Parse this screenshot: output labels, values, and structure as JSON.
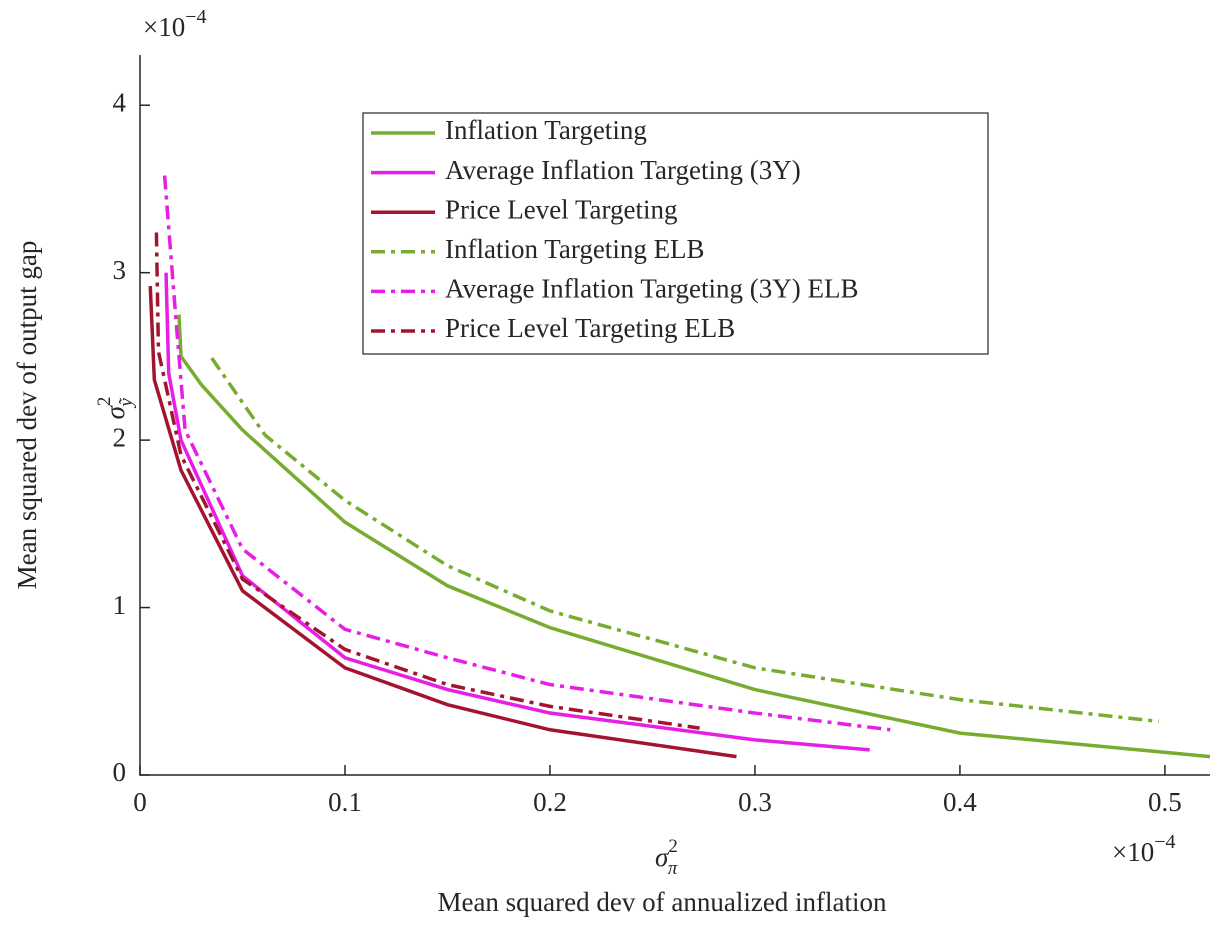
{
  "chart_data": {
    "type": "line",
    "x_label": {
      "symbol": "σ",
      "sup": "2",
      "sub": "π",
      "text": "Mean squared dev of annualized inflation"
    },
    "y_label": {
      "symbol": "σ",
      "sup": "2",
      "sub": "ỹ",
      "text": "Mean squared dev of output gap"
    },
    "x_multiplier": {
      "base": "×10",
      "exponent": "−4"
    },
    "y_multiplier": {
      "base": "×10",
      "exponent": "−4"
    },
    "xlim": [
      0,
      0.522
    ],
    "ylim": [
      0,
      4.3
    ],
    "xticks": [
      0,
      0.1,
      0.2,
      0.3,
      0.4,
      0.5
    ],
    "yticks": [
      0,
      1,
      2,
      3,
      4
    ],
    "legend": "upper-center",
    "series": [
      {
        "name": "Inflation Targeting",
        "color": "#77ac30",
        "dash": "solid",
        "x": [
          0.019,
          0.02,
          0.03,
          0.05,
          0.1,
          0.15,
          0.2,
          0.3,
          0.4,
          0.522
        ],
        "values": [
          2.75,
          2.5,
          2.33,
          2.06,
          1.51,
          1.13,
          0.88,
          0.51,
          0.25,
          0.11
        ]
      },
      {
        "name": "Average Inflation Targeting (3Y)",
        "color": "#e61ee6",
        "dash": "solid",
        "x": [
          0.0127,
          0.014,
          0.02,
          0.05,
          0.1,
          0.15,
          0.2,
          0.3,
          0.356
        ],
        "values": [
          3.0,
          2.4,
          2.0,
          1.19,
          0.7,
          0.51,
          0.37,
          0.21,
          0.15
        ]
      },
      {
        "name": "Price Level Targeting",
        "color": "#a2142f",
        "dash": "solid",
        "x": [
          0.005,
          0.007,
          0.02,
          0.05,
          0.1,
          0.15,
          0.2,
          0.291
        ],
        "values": [
          2.92,
          2.36,
          1.82,
          1.1,
          0.64,
          0.42,
          0.27,
          0.11
        ]
      },
      {
        "name": "Inflation Targeting ELB",
        "color": "#77ac30",
        "dash": "dashdot",
        "x": [
          0.035,
          0.061,
          0.1,
          0.15,
          0.2,
          0.3,
          0.4,
          0.497
        ],
        "values": [
          2.49,
          2.03,
          1.64,
          1.25,
          0.98,
          0.64,
          0.45,
          0.32
        ]
      },
      {
        "name": "Average Inflation Targeting (3Y) ELB",
        "color": "#e61ee6",
        "dash": "dashdot",
        "x": [
          0.012,
          0.018,
          0.022,
          0.05,
          0.1,
          0.15,
          0.2,
          0.3,
          0.366
        ],
        "values": [
          3.58,
          2.65,
          2.06,
          1.35,
          0.87,
          0.7,
          0.54,
          0.37,
          0.27
        ]
      },
      {
        "name": "Price Level Targeting ELB",
        "color": "#a2142f",
        "dash": "dashdot",
        "x": [
          0.008,
          0.009,
          0.02,
          0.05,
          0.1,
          0.15,
          0.2,
          0.273
        ],
        "values": [
          3.24,
          2.53,
          1.91,
          1.17,
          0.75,
          0.54,
          0.41,
          0.28
        ]
      }
    ]
  }
}
